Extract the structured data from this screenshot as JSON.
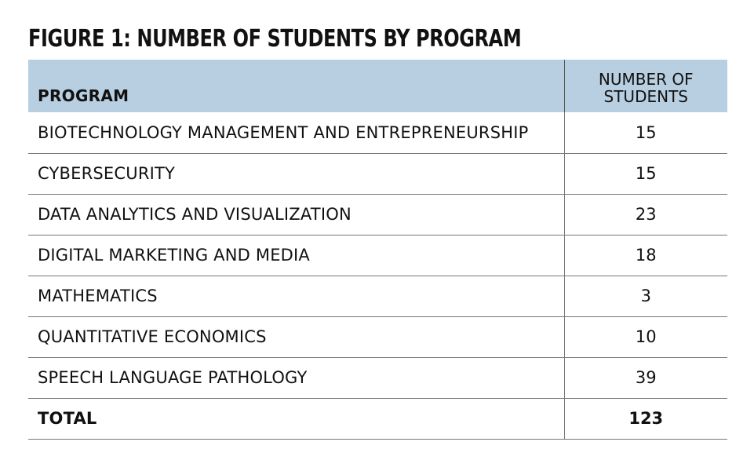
{
  "figure": {
    "title": "FIGURE 1: NUMBER OF STUDENTS BY PROGRAM"
  },
  "table": {
    "header": {
      "program": "PROGRAM",
      "count_line1": "NUMBER OF",
      "count_line2": "STUDENTS"
    },
    "rows": [
      {
        "program": "BIOTECHNOLOGY MANAGEMENT AND ENTREPRENEURSHIP",
        "count": "15"
      },
      {
        "program": "CYBERSECURITY",
        "count": "15"
      },
      {
        "program": "DATA ANALYTICS AND VISUALIZATION",
        "count": "23"
      },
      {
        "program": "DIGITAL MARKETING AND MEDIA",
        "count": "18"
      },
      {
        "program": "MATHEMATICS",
        "count": "3"
      },
      {
        "program": "QUANTITATIVE ECONOMICS",
        "count": "10"
      },
      {
        "program": "SPEECH LANGUAGE PATHOLOGY",
        "count": "39"
      }
    ],
    "total": {
      "label": "TOTAL",
      "count": "123"
    }
  },
  "colors": {
    "header_background": "#b8cfe1",
    "text": "#111111",
    "rule": "#777777"
  },
  "chart_data": {
    "type": "table",
    "title": "FIGURE 1: NUMBER OF STUDENTS BY PROGRAM",
    "columns": [
      "PROGRAM",
      "NUMBER OF STUDENTS"
    ],
    "categories": [
      "BIOTECHNOLOGY MANAGEMENT AND ENTREPRENEURSHIP",
      "CYBERSECURITY",
      "DATA ANALYTICS AND VISUALIZATION",
      "DIGITAL MARKETING AND MEDIA",
      "MATHEMATICS",
      "QUANTITATIVE ECONOMICS",
      "SPEECH LANGUAGE PATHOLOGY"
    ],
    "values": [
      15,
      15,
      23,
      18,
      3,
      10,
      39
    ],
    "total": 123
  }
}
